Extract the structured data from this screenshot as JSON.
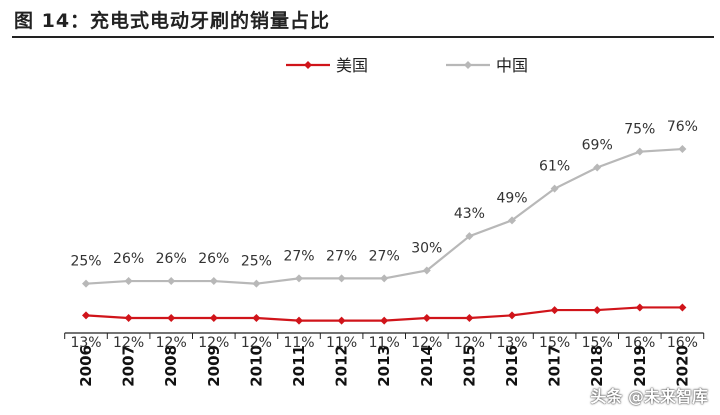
{
  "title": "图  14：充电式电动牙刷的销量占比",
  "watermark": "头条 @未来智库",
  "chart_data": {
    "type": "line",
    "x": [
      "2006",
      "2007",
      "2008",
      "2009",
      "2010",
      "2011",
      "2012",
      "2013",
      "2014",
      "2015",
      "2016",
      "2017",
      "2018",
      "2019",
      "2020"
    ],
    "series": [
      {
        "name": "美国",
        "color": "#d0141a",
        "values": [
          13,
          12,
          12,
          12,
          12,
          11,
          11,
          11,
          12,
          12,
          13,
          15,
          15,
          16,
          16
        ],
        "labels": [
          "13%",
          "12%",
          "12%",
          "12%",
          "12%",
          "11%",
          "11%",
          "11%",
          "12%",
          "12%",
          "13%",
          "15%",
          "15%",
          "16%",
          "16%"
        ]
      },
      {
        "name": "中国",
        "color": "#b8b8b8",
        "values": [
          25,
          26,
          26,
          26,
          25,
          27,
          27,
          27,
          30,
          43,
          49,
          61,
          69,
          75,
          76
        ],
        "labels": [
          "25%",
          "26%",
          "26%",
          "26%",
          "25%",
          "27%",
          "27%",
          "27%",
          "30%",
          "43%",
          "49%",
          "61%",
          "69%",
          "75%",
          "76%"
        ]
      }
    ],
    "legend_position": "top-center",
    "grid": false
  }
}
